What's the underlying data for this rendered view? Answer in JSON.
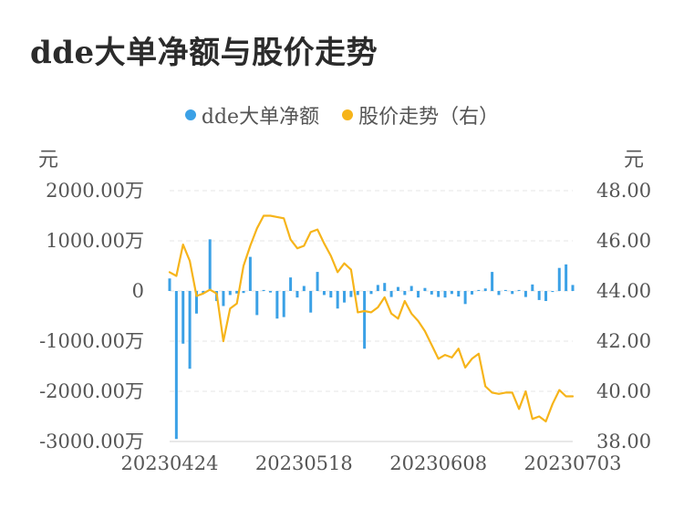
{
  "title": "dde大单净额与股价走势",
  "legend": [
    {
      "label": "dde大单净额",
      "color": "#3ba1e6"
    },
    {
      "label": "股价走势（右）",
      "color": "#f6b41a"
    }
  ],
  "units": {
    "left": "元",
    "right": "元"
  },
  "chart_data": {
    "type": "bar+line",
    "title": "dde大单净额与股价走势",
    "y_left": {
      "unit": "元",
      "min": -3000,
      "max": 2000,
      "ticks": [
        2000,
        1000,
        0,
        -1000,
        -2000,
        -3000
      ],
      "tick_labels": [
        "2000.00万",
        "1000.00万",
        "0",
        "-1000.00万",
        "-2000.00万",
        "-3000.00万"
      ]
    },
    "y_right": {
      "unit": "元",
      "min": 38,
      "max": 48,
      "ticks": [
        48,
        46,
        44,
        42,
        40,
        38
      ],
      "tick_labels": [
        "48.00",
        "46.00",
        "44.00",
        "42.00",
        "40.00",
        "38.00"
      ]
    },
    "x_tick_labels": [
      {
        "index": 0,
        "label": "20230424"
      },
      {
        "index": 20,
        "label": "20230518"
      },
      {
        "index": 40,
        "label": "20230608"
      },
      {
        "index": 60,
        "label": "20230703"
      }
    ],
    "grid": true,
    "series": [
      {
        "name": "dde大单净额",
        "type": "bar",
        "axis": "left",
        "color": "#3ba1e6",
        "values": [
          250,
          -2950,
          -1050,
          -1550,
          -450,
          -50,
          1030,
          -200,
          -300,
          -80,
          -50,
          -40,
          680,
          -480,
          20,
          -30,
          -550,
          -520,
          270,
          -130,
          100,
          -430,
          380,
          -80,
          -130,
          -350,
          -230,
          -120,
          -80,
          -1150,
          -60,
          120,
          160,
          -120,
          80,
          -80,
          100,
          -130,
          60,
          -70,
          -120,
          -130,
          -60,
          -110,
          -260,
          -70,
          20,
          50,
          380,
          -80,
          20,
          -60,
          20,
          -120,
          130,
          -180,
          -200,
          -20,
          460,
          530,
          120
        ]
      },
      {
        "name": "股价走势（右）",
        "type": "line",
        "axis": "right",
        "color": "#f6b41a",
        "values": [
          44.75,
          44.6,
          45.85,
          45.2,
          43.8,
          43.9,
          44.05,
          43.9,
          42.0,
          43.3,
          43.5,
          45.0,
          45.8,
          46.5,
          47.0,
          47.0,
          46.95,
          46.9,
          46.05,
          45.7,
          45.8,
          46.35,
          46.45,
          45.9,
          45.4,
          44.75,
          45.1,
          44.85,
          43.15,
          43.2,
          43.15,
          43.35,
          43.75,
          43.1,
          42.9,
          43.6,
          43.1,
          42.8,
          42.4,
          41.85,
          41.3,
          41.45,
          41.35,
          41.7,
          40.95,
          41.3,
          41.5,
          40.2,
          39.95,
          39.9,
          39.95,
          39.95,
          39.3,
          40.0,
          38.9,
          39.0,
          38.8,
          39.5,
          40.05,
          39.8,
          39.8
        ]
      }
    ]
  }
}
